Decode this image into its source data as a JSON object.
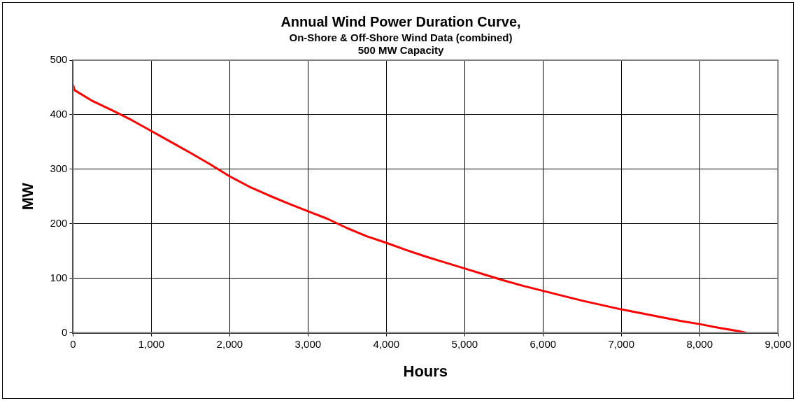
{
  "chart_data": {
    "type": "line",
    "title": "Annual Wind Power Duration Curve,",
    "subtitle": [
      "On-Shore & Off-Shore Wind Data (combined)",
      "500 MW Capacity"
    ],
    "xlabel": "Hours",
    "ylabel": "MW",
    "x": [
      0,
      20,
      250,
      500,
      750,
      1000,
      1250,
      1500,
      1750,
      2000,
      2250,
      2500,
      2750,
      3000,
      3250,
      3500,
      3750,
      4000,
      4250,
      4500,
      4750,
      5000,
      5250,
      5500,
      5750,
      6000,
      6250,
      6500,
      6750,
      7000,
      7250,
      7500,
      7750,
      8000,
      8250,
      8500,
      8600
    ],
    "series": [
      {
        "color": "#ff0000",
        "values": [
          455,
          445,
          425,
          408,
          390,
          370,
          350,
          330,
          309,
          287,
          268,
          252,
          237,
          223,
          209,
          192,
          177,
          165,
          152,
          140,
          129,
          118,
          107,
          96,
          86,
          77,
          68,
          59,
          51,
          43,
          36,
          29,
          22,
          16,
          9,
          3,
          0
        ]
      }
    ],
    "xlim": [
      0,
      9000
    ],
    "xticks": [
      0,
      {
        "value": 1000,
        "label": "1,000"
      },
      {
        "value": 2000,
        "label": "2,000"
      },
      {
        "value": 3000,
        "label": "3,000"
      },
      {
        "value": 4000,
        "label": "4,000"
      },
      {
        "value": 5000,
        "label": "5,000"
      },
      {
        "value": 6000,
        "label": "6,000"
      },
      {
        "value": 7000,
        "label": "7,000"
      },
      {
        "value": 8000,
        "label": "8,000"
      },
      {
        "value": 9000,
        "label": "9,000"
      }
    ],
    "ylim": [
      0,
      500
    ],
    "yticks": [
      0,
      100,
      200,
      300,
      400,
      500
    ],
    "grid": true,
    "legend": false,
    "marker": "none",
    "line_style": "solid"
  }
}
